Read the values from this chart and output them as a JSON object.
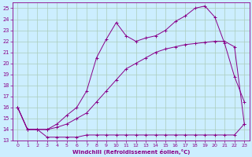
{
  "xlabel": "Windchill (Refroidissement éolien,°C)",
  "bg_color": "#cceeff",
  "grid_color": "#aaccbb",
  "line_color": "#880088",
  "ylim": [
    13,
    25.5
  ],
  "xlim": [
    -0.5,
    23.5
  ],
  "yticks": [
    13,
    14,
    15,
    16,
    17,
    18,
    19,
    20,
    21,
    22,
    23,
    24,
    25
  ],
  "xticks": [
    0,
    1,
    2,
    3,
    4,
    5,
    6,
    7,
    8,
    9,
    10,
    11,
    12,
    13,
    14,
    15,
    16,
    17,
    18,
    19,
    20,
    21,
    22,
    23
  ],
  "line1_x": [
    0,
    1,
    2,
    3,
    4,
    5,
    6,
    7,
    8,
    9,
    10,
    11,
    12,
    13,
    14,
    15,
    16,
    17,
    18,
    19,
    20,
    21,
    22,
    23
  ],
  "line1_y": [
    16.0,
    14.0,
    14.0,
    13.3,
    13.3,
    13.3,
    13.3,
    13.5,
    13.5,
    13.5,
    13.5,
    13.5,
    13.5,
    13.5,
    13.5,
    13.5,
    13.5,
    13.5,
    13.5,
    13.5,
    13.5,
    13.5,
    13.5,
    14.5
  ],
  "line2_x": [
    0,
    1,
    2,
    3,
    4,
    5,
    6,
    7,
    8,
    9,
    10,
    11,
    12,
    13,
    14,
    15,
    16,
    17,
    18,
    19,
    20,
    21,
    22,
    23
  ],
  "line2_y": [
    16.0,
    14.0,
    14.0,
    14.0,
    14.2,
    14.5,
    15.0,
    15.5,
    16.5,
    17.5,
    18.5,
    19.5,
    20.0,
    20.5,
    21.0,
    21.3,
    21.5,
    21.7,
    21.8,
    21.9,
    22.0,
    22.0,
    21.5,
    14.5
  ],
  "line3_x": [
    0,
    1,
    2,
    3,
    4,
    5,
    6,
    7,
    8,
    9,
    10,
    11,
    12,
    13,
    14,
    15,
    16,
    17,
    18,
    19,
    20,
    21,
    22,
    23
  ],
  "line3_y": [
    16.0,
    14.0,
    14.0,
    14.0,
    14.5,
    15.3,
    16.0,
    17.5,
    20.5,
    22.2,
    23.7,
    22.5,
    22.0,
    22.3,
    22.5,
    23.0,
    23.8,
    24.3,
    25.0,
    25.2,
    24.2,
    21.8,
    18.8,
    16.5
  ]
}
